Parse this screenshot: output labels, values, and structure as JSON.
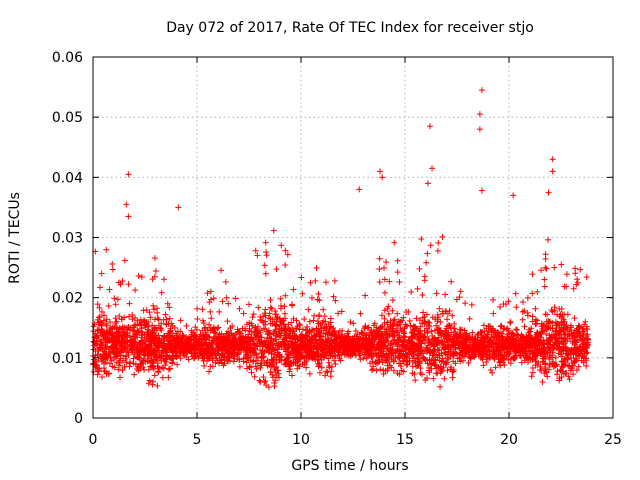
{
  "chart_data": {
    "type": "scatter",
    "title": "Day 072 of 2017, Rate Of TEC Index for receiver stjo",
    "xlabel": "GPS time / hours",
    "ylabel": "ROTI / TECUs",
    "xlim": [
      0,
      25
    ],
    "ylim": [
      0,
      0.06
    ],
    "xticks": [
      0,
      5,
      10,
      15,
      20,
      25
    ],
    "xtick_labels": [
      "0",
      "5",
      "10",
      "15",
      "20",
      "25"
    ],
    "yticks": [
      0,
      0.01,
      0.02,
      0.03,
      0.04,
      0.05,
      0.06
    ],
    "ytick_labels": [
      "0",
      "0.01",
      "0.02",
      "0.03",
      "0.04",
      "0.05",
      "0.06"
    ],
    "grid": true,
    "marker": "+",
    "marker_color": "#ff0000",
    "series": [
      {
        "name": "ROTI",
        "density": {
          "x_range": [
            0,
            23.8
          ],
          "typical_min": 0.004,
          "typical_max": 0.025,
          "median": 0.012,
          "points": 4200
        },
        "peaks": [
          {
            "x": 1.7,
            "y": 0.0405
          },
          {
            "x": 1.6,
            "y": 0.0355
          },
          {
            "x": 1.7,
            "y": 0.0335
          },
          {
            "x": 4.1,
            "y": 0.035
          },
          {
            "x": 12.8,
            "y": 0.038
          },
          {
            "x": 13.8,
            "y": 0.041
          },
          {
            "x": 13.9,
            "y": 0.04
          },
          {
            "x": 16.2,
            "y": 0.0485
          },
          {
            "x": 16.3,
            "y": 0.0415
          },
          {
            "x": 16.1,
            "y": 0.039
          },
          {
            "x": 18.7,
            "y": 0.0545
          },
          {
            "x": 18.6,
            "y": 0.0505
          },
          {
            "x": 18.6,
            "y": 0.048
          },
          {
            "x": 18.7,
            "y": 0.0378
          },
          {
            "x": 20.2,
            "y": 0.037
          },
          {
            "x": 22.1,
            "y": 0.043
          },
          {
            "x": 22.1,
            "y": 0.041
          },
          {
            "x": 21.9,
            "y": 0.0375
          }
        ]
      }
    ]
  }
}
